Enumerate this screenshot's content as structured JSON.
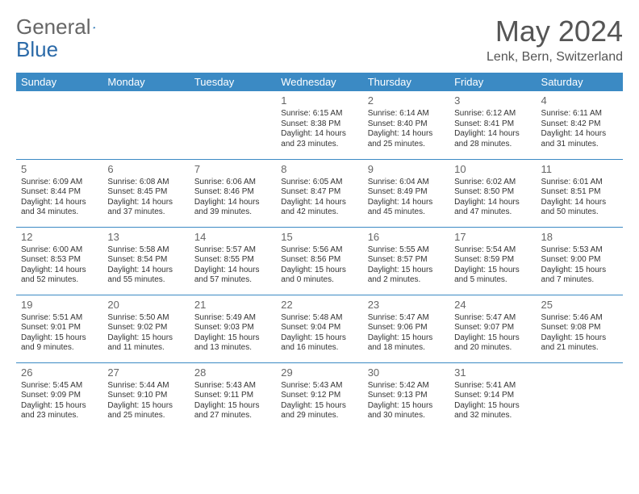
{
  "logo": {
    "word1": "General",
    "word2": "Blue"
  },
  "title": "May 2024",
  "location": "Lenk, Bern, Switzerland",
  "day_names": [
    "Sunday",
    "Monday",
    "Tuesday",
    "Wednesday",
    "Thursday",
    "Friday",
    "Saturday"
  ],
  "colors": {
    "header_bg": "#3b8ac4",
    "header_fg": "#ffffff",
    "rule": "#3b8ac4"
  },
  "weeks": [
    [
      null,
      null,
      null,
      {
        "n": "1",
        "sr": "6:15 AM",
        "ss": "8:38 PM",
        "dl1": "14 hours",
        "dl2": "and 23 minutes."
      },
      {
        "n": "2",
        "sr": "6:14 AM",
        "ss": "8:40 PM",
        "dl1": "14 hours",
        "dl2": "and 25 minutes."
      },
      {
        "n": "3",
        "sr": "6:12 AM",
        "ss": "8:41 PM",
        "dl1": "14 hours",
        "dl2": "and 28 minutes."
      },
      {
        "n": "4",
        "sr": "6:11 AM",
        "ss": "8:42 PM",
        "dl1": "14 hours",
        "dl2": "and 31 minutes."
      }
    ],
    [
      {
        "n": "5",
        "sr": "6:09 AM",
        "ss": "8:44 PM",
        "dl1": "14 hours",
        "dl2": "and 34 minutes."
      },
      {
        "n": "6",
        "sr": "6:08 AM",
        "ss": "8:45 PM",
        "dl1": "14 hours",
        "dl2": "and 37 minutes."
      },
      {
        "n": "7",
        "sr": "6:06 AM",
        "ss": "8:46 PM",
        "dl1": "14 hours",
        "dl2": "and 39 minutes."
      },
      {
        "n": "8",
        "sr": "6:05 AM",
        "ss": "8:47 PM",
        "dl1": "14 hours",
        "dl2": "and 42 minutes."
      },
      {
        "n": "9",
        "sr": "6:04 AM",
        "ss": "8:49 PM",
        "dl1": "14 hours",
        "dl2": "and 45 minutes."
      },
      {
        "n": "10",
        "sr": "6:02 AM",
        "ss": "8:50 PM",
        "dl1": "14 hours",
        "dl2": "and 47 minutes."
      },
      {
        "n": "11",
        "sr": "6:01 AM",
        "ss": "8:51 PM",
        "dl1": "14 hours",
        "dl2": "and 50 minutes."
      }
    ],
    [
      {
        "n": "12",
        "sr": "6:00 AM",
        "ss": "8:53 PM",
        "dl1": "14 hours",
        "dl2": "and 52 minutes."
      },
      {
        "n": "13",
        "sr": "5:58 AM",
        "ss": "8:54 PM",
        "dl1": "14 hours",
        "dl2": "and 55 minutes."
      },
      {
        "n": "14",
        "sr": "5:57 AM",
        "ss": "8:55 PM",
        "dl1": "14 hours",
        "dl2": "and 57 minutes."
      },
      {
        "n": "15",
        "sr": "5:56 AM",
        "ss": "8:56 PM",
        "dl1": "15 hours",
        "dl2": "and 0 minutes."
      },
      {
        "n": "16",
        "sr": "5:55 AM",
        "ss": "8:57 PM",
        "dl1": "15 hours",
        "dl2": "and 2 minutes."
      },
      {
        "n": "17",
        "sr": "5:54 AM",
        "ss": "8:59 PM",
        "dl1": "15 hours",
        "dl2": "and 5 minutes."
      },
      {
        "n": "18",
        "sr": "5:53 AM",
        "ss": "9:00 PM",
        "dl1": "15 hours",
        "dl2": "and 7 minutes."
      }
    ],
    [
      {
        "n": "19",
        "sr": "5:51 AM",
        "ss": "9:01 PM",
        "dl1": "15 hours",
        "dl2": "and 9 minutes."
      },
      {
        "n": "20",
        "sr": "5:50 AM",
        "ss": "9:02 PM",
        "dl1": "15 hours",
        "dl2": "and 11 minutes."
      },
      {
        "n": "21",
        "sr": "5:49 AM",
        "ss": "9:03 PM",
        "dl1": "15 hours",
        "dl2": "and 13 minutes."
      },
      {
        "n": "22",
        "sr": "5:48 AM",
        "ss": "9:04 PM",
        "dl1": "15 hours",
        "dl2": "and 16 minutes."
      },
      {
        "n": "23",
        "sr": "5:47 AM",
        "ss": "9:06 PM",
        "dl1": "15 hours",
        "dl2": "and 18 minutes."
      },
      {
        "n": "24",
        "sr": "5:47 AM",
        "ss": "9:07 PM",
        "dl1": "15 hours",
        "dl2": "and 20 minutes."
      },
      {
        "n": "25",
        "sr": "5:46 AM",
        "ss": "9:08 PM",
        "dl1": "15 hours",
        "dl2": "and 21 minutes."
      }
    ],
    [
      {
        "n": "26",
        "sr": "5:45 AM",
        "ss": "9:09 PM",
        "dl1": "15 hours",
        "dl2": "and 23 minutes."
      },
      {
        "n": "27",
        "sr": "5:44 AM",
        "ss": "9:10 PM",
        "dl1": "15 hours",
        "dl2": "and 25 minutes."
      },
      {
        "n": "28",
        "sr": "5:43 AM",
        "ss": "9:11 PM",
        "dl1": "15 hours",
        "dl2": "and 27 minutes."
      },
      {
        "n": "29",
        "sr": "5:43 AM",
        "ss": "9:12 PM",
        "dl1": "15 hours",
        "dl2": "and 29 minutes."
      },
      {
        "n": "30",
        "sr": "5:42 AM",
        "ss": "9:13 PM",
        "dl1": "15 hours",
        "dl2": "and 30 minutes."
      },
      {
        "n": "31",
        "sr": "5:41 AM",
        "ss": "9:14 PM",
        "dl1": "15 hours",
        "dl2": "and 32 minutes."
      },
      null
    ]
  ],
  "labels": {
    "sunrise": "Sunrise: ",
    "sunset": "Sunset: ",
    "daylight": "Daylight: "
  }
}
